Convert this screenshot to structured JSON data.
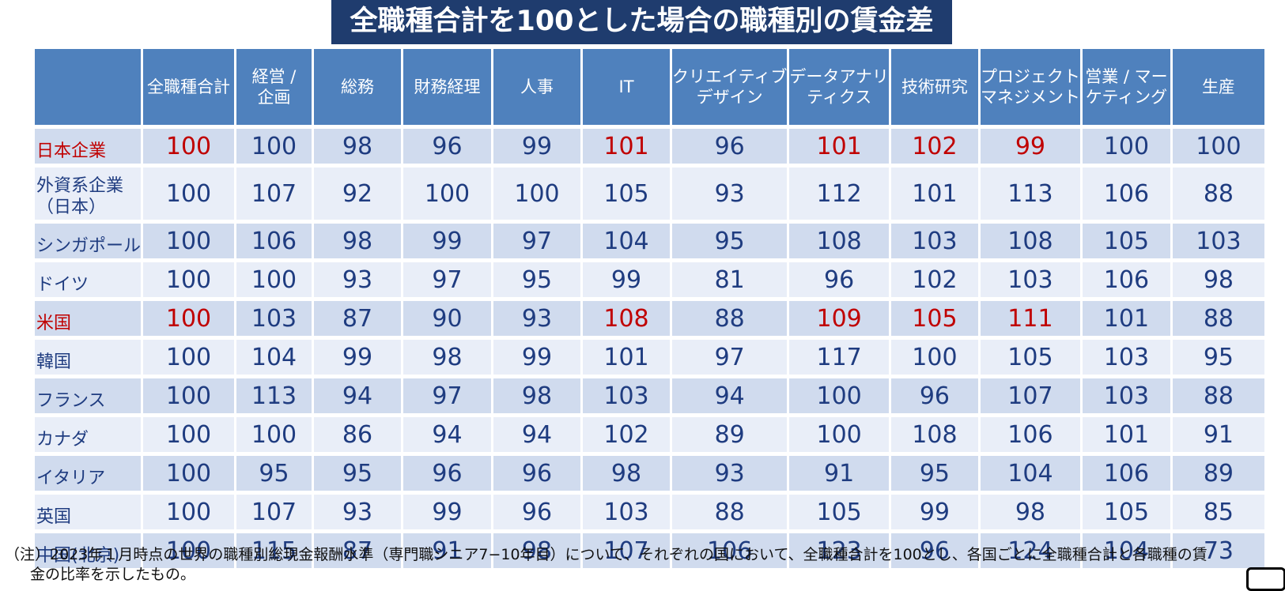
{
  "chart_data": {
    "type": "table",
    "title": "全職種合計を100とした場合の職種別の賃金差",
    "columns": [
      {
        "lines": [
          ""
        ]
      },
      {
        "lines": [
          "全職種合計"
        ]
      },
      {
        "lines": [
          "経営 /",
          "企画"
        ]
      },
      {
        "lines": [
          "総務"
        ]
      },
      {
        "lines": [
          "財務経理"
        ]
      },
      {
        "lines": [
          "人事"
        ]
      },
      {
        "lines": [
          "IT"
        ]
      },
      {
        "lines": [
          "クリエイティブ",
          "デザイン"
        ]
      },
      {
        "lines": [
          "データアナリ",
          "ティクス"
        ]
      },
      {
        "lines": [
          "技術研究"
        ]
      },
      {
        "lines": [
          "プロジェクト",
          "マネジメント"
        ]
      },
      {
        "lines": [
          "営業 / マー",
          "ケティング"
        ]
      },
      {
        "lines": [
          "生産"
        ]
      }
    ],
    "highlight_color": "#c00000",
    "rows": [
      {
        "label": [
          "日本企業"
        ],
        "highlight_label": true,
        "values": [
          100,
          100,
          98,
          96,
          99,
          101,
          96,
          101,
          102,
          99,
          100,
          100
        ],
        "highlight_cols": [
          0,
          5,
          7,
          8,
          9
        ]
      },
      {
        "label": [
          "外資系企業",
          "（日本）"
        ],
        "values": [
          100,
          107,
          92,
          100,
          100,
          105,
          93,
          112,
          101,
          113,
          106,
          88
        ]
      },
      {
        "label": [
          "シンガポール"
        ],
        "values": [
          100,
          106,
          98,
          99,
          97,
          104,
          95,
          108,
          103,
          108,
          105,
          103
        ]
      },
      {
        "label": [
          "ドイツ"
        ],
        "values": [
          100,
          100,
          93,
          97,
          95,
          99,
          81,
          96,
          102,
          103,
          106,
          98
        ]
      },
      {
        "label": [
          "米国"
        ],
        "highlight_label": true,
        "values": [
          100,
          103,
          87,
          90,
          93,
          108,
          88,
          109,
          105,
          111,
          101,
          88
        ],
        "highlight_cols": [
          0,
          5,
          7,
          8,
          9
        ]
      },
      {
        "label": [
          "韓国"
        ],
        "values": [
          100,
          104,
          99,
          98,
          99,
          101,
          97,
          117,
          100,
          105,
          103,
          95
        ]
      },
      {
        "label": [
          "フランス"
        ],
        "values": [
          100,
          113,
          94,
          97,
          98,
          103,
          94,
          100,
          96,
          107,
          103,
          88
        ]
      },
      {
        "label": [
          "カナダ"
        ],
        "values": [
          100,
          100,
          86,
          94,
          94,
          102,
          89,
          100,
          108,
          106,
          101,
          91
        ]
      },
      {
        "label": [
          "イタリア"
        ],
        "values": [
          100,
          95,
          95,
          96,
          96,
          98,
          93,
          91,
          95,
          104,
          106,
          89
        ]
      },
      {
        "label": [
          "英国"
        ],
        "values": [
          100,
          107,
          93,
          99,
          96,
          103,
          88,
          105,
          99,
          98,
          105,
          85
        ]
      },
      {
        "label": [
          "中国(北京)"
        ],
        "values": [
          100,
          115,
          87,
          91,
          98,
          107,
          106,
          123,
          96,
          124,
          104,
          73
        ]
      }
    ],
    "note": [
      "（注）2023年１月時点の世界の職種別総現金報酬水準（専門職シニア7−10年目）について、それぞれの国において、全職種合計を100とし、各国ごとに全職種合計と各職種の賃",
      "金の比率を示したもの。"
    ]
  }
}
